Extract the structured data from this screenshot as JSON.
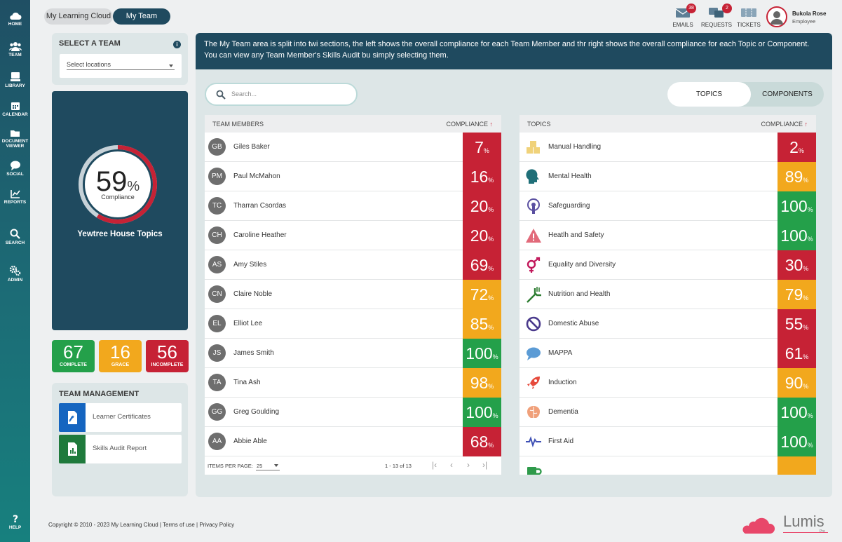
{
  "nav": [
    {
      "label": "HOME",
      "icon": "cloud-icon"
    },
    {
      "label": "TEAM",
      "icon": "team-icon"
    },
    {
      "label": "LIBRARY",
      "icon": "library-icon"
    },
    {
      "label": "CALENDAR",
      "icon": "calendar-icon"
    },
    {
      "label": "DOCUMENT",
      "label2": "VIEWER",
      "icon": "folder-icon"
    },
    {
      "label": "SOCIAL",
      "icon": "chat-icon"
    },
    {
      "label": "REPORTS",
      "icon": "chart-icon"
    },
    {
      "label": "SEARCH",
      "icon": "search-icon"
    },
    {
      "label": "ADMIN",
      "icon": "gears-icon"
    },
    {
      "label": "HELP",
      "icon": "question-icon"
    }
  ],
  "tabs": {
    "learning_cloud": "My Learning Cloud",
    "my_team": "My Team"
  },
  "header": {
    "emails": {
      "label": "EMAILS",
      "count": "38"
    },
    "requests": {
      "label": "REQUESTS",
      "count": "2"
    },
    "tickets": {
      "label": "TICKETS"
    },
    "user": {
      "name": "Bukola Rose",
      "role": "Employee"
    }
  },
  "select_team": {
    "title": "SELECT A TEAM",
    "placeholder": "Select locations"
  },
  "overview": {
    "percent": "59",
    "percent_sign": "%",
    "label": "Compliance",
    "value": 59,
    "team_name": "Yewtree House Topics"
  },
  "stats": [
    {
      "value": "67",
      "label": "COMPLETE",
      "color": "#24a04a"
    },
    {
      "value": "16",
      "label": "GRACE",
      "color": "#f2a81d"
    },
    {
      "value": "56",
      "label": "INCOMPLETE",
      "color": "#c62235"
    }
  ],
  "team_management": {
    "title": "TEAM MANAGEMENT",
    "items": [
      {
        "label": "Learner Certificates",
        "color": "#1565c0",
        "icon": "pdf-icon"
      },
      {
        "label": "Skills Audit Report",
        "color": "#1f7a3c",
        "icon": "spreadsheet-icon"
      }
    ]
  },
  "intro": "The My Team area is split into twi sections, the left shows the overall compliance for each Team Member and thr right shows the overall compliance for each Topic or Component. You can view any Team Member's Skills Audit bu simply selecting them.",
  "search": {
    "placeholder": "Search..."
  },
  "view_toggle": {
    "topics": "TOPICS",
    "components": "COMPONENTS"
  },
  "members_table": {
    "header_name": "TEAM MEMBERS",
    "header_compliance": "COMPLIANCE",
    "rows": [
      {
        "initials": "GB",
        "name": "Giles Baker",
        "score": "7",
        "color": "#c62235"
      },
      {
        "initials": "PM",
        "name": "Paul McMahon",
        "score": "16",
        "color": "#c62235"
      },
      {
        "initials": "TC",
        "name": "Tharran Csordas",
        "score": "20",
        "color": "#c62235"
      },
      {
        "initials": "CH",
        "name": "Caroline Heather",
        "score": "20",
        "color": "#c62235"
      },
      {
        "initials": "AS",
        "name": "Amy Stiles",
        "score": "69",
        "color": "#c62235"
      },
      {
        "initials": "CN",
        "name": "Claire Noble",
        "score": "72",
        "color": "#f2a81d"
      },
      {
        "initials": "EL",
        "name": "Elliot Lee",
        "score": "85",
        "color": "#f2a81d"
      },
      {
        "initials": "JS",
        "name": "James Smith",
        "score": "100",
        "color": "#24a04a"
      },
      {
        "initials": "TA",
        "name": "Tina Ash",
        "score": "98",
        "color": "#f2a81d"
      },
      {
        "initials": "GG",
        "name": "Greg Goulding",
        "score": "100",
        "color": "#24a04a"
      },
      {
        "initials": "AA",
        "name": "Abbie Able",
        "score": "68",
        "color": "#c62235"
      }
    ],
    "pager": {
      "items_label": "ITEMS PER PAGE:",
      "per_page": "25",
      "range": "1 - 13 of 13"
    }
  },
  "topics_table": {
    "header_name": "TOPICS",
    "header_compliance": "COMPLIANCE",
    "rows": [
      {
        "icon": "boxes-icon",
        "icon_color": "#f0d27a",
        "name": "Manual Handling",
        "score": "2",
        "color": "#c62235"
      },
      {
        "icon": "head-icon",
        "icon_color": "#1f6f78",
        "name": "Mental Health",
        "score": "89",
        "color": "#f2a81d"
      },
      {
        "icon": "safeguarding-icon",
        "icon_color": "#5a4fa0",
        "name": "Safeguarding",
        "score": "100",
        "color": "#24a04a"
      },
      {
        "icon": "warning-icon",
        "icon_color": "#e26a7a",
        "name": "Heatlh and Safety",
        "score": "100",
        "color": "#24a04a"
      },
      {
        "icon": "gender-icon",
        "icon_color": "#c2185b",
        "name": "Equality and Diversity",
        "score": "30",
        "color": "#c62235"
      },
      {
        "icon": "fork-icon",
        "icon_color": "#2e7d32",
        "name": "Nutrition and Health",
        "score": "79",
        "color": "#f2a81d"
      },
      {
        "icon": "prohibited-icon",
        "icon_color": "#4a3a8c",
        "name": "Domestic Abuse",
        "score": "55",
        "color": "#c62235"
      },
      {
        "icon": "speech-bubble-icon",
        "icon_color": "#5b9bd5",
        "name": "MAPPA",
        "score": "61",
        "color": "#c62235"
      },
      {
        "icon": "rocket-icon",
        "icon_color": "#e64a3c",
        "name": "Induction",
        "score": "90",
        "color": "#f2a81d"
      },
      {
        "icon": "brain-icon",
        "icon_color": "#f0a07a",
        "name": "Dementia",
        "score": "100",
        "color": "#24a04a"
      },
      {
        "icon": "heartbeat-icon",
        "icon_color": "#3f51b5",
        "name": "First Aid",
        "score": "100",
        "color": "#24a04a"
      },
      {
        "icon": "mug-icon",
        "icon_color": "#2e9a4a",
        "name": "",
        "score": "",
        "color": "#f2a81d"
      }
    ]
  },
  "footer": {
    "copyright": "Copyright © 2010 - 2023 My Learning Cloud | Terms of use | Privacy Policy"
  },
  "brand": {
    "name": "Lumis",
    "sub": "Pro"
  }
}
